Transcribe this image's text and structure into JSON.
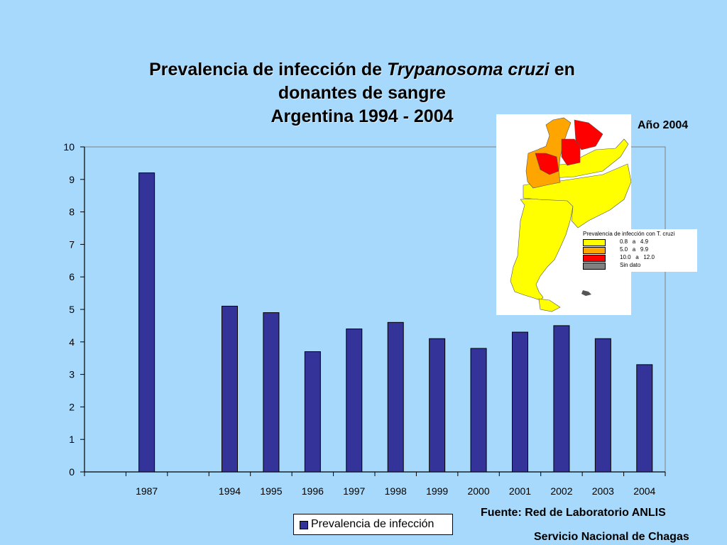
{
  "slide": {
    "title_part1": "Prevalencia de infección de ",
    "title_italic": "Trypanosoma cruzi",
    "title_part2": " en",
    "title_line2": "donantes de sangre",
    "title_line3": "Argentina 1994 - 2004",
    "year_label": "Año 2004",
    "source_line1": "Fuente: Red de Laboratorio ANLIS",
    "source_line2": "Servicio Nacional de Chagas",
    "background_color": "#a6d9fb"
  },
  "map_legend": {
    "title": "Prevalencia de infección con T. cruzi",
    "items": [
      {
        "label": "0.8   a   4.9",
        "color": "#ffff00"
      },
      {
        "label": "5.0   a   9.9",
        "color": "#ffa500"
      },
      {
        "label": "10.0   a   12.0",
        "color": "#ff0000"
      },
      {
        "label": "Sin dato",
        "color": "#808080"
      }
    ]
  },
  "chart_data": {
    "type": "bar",
    "categories": [
      "1987",
      "",
      "1994",
      "1995",
      "1996",
      "1997",
      "1998",
      "1999",
      "2000",
      "2001",
      "2002",
      "2003",
      "2004"
    ],
    "series": [
      {
        "name": "Prevalencia de infección",
        "values": [
          9.2,
          null,
          5.1,
          4.9,
          3.7,
          4.4,
          4.6,
          4.1,
          3.8,
          4.3,
          4.5,
          4.1,
          3.3
        ],
        "color": "#33339a"
      }
    ],
    "ylim": [
      0,
      10
    ],
    "yticks": [
      0,
      1,
      2,
      3,
      4,
      5,
      6,
      7,
      8,
      9,
      10
    ],
    "grid": false,
    "legend_position": "bottom"
  }
}
